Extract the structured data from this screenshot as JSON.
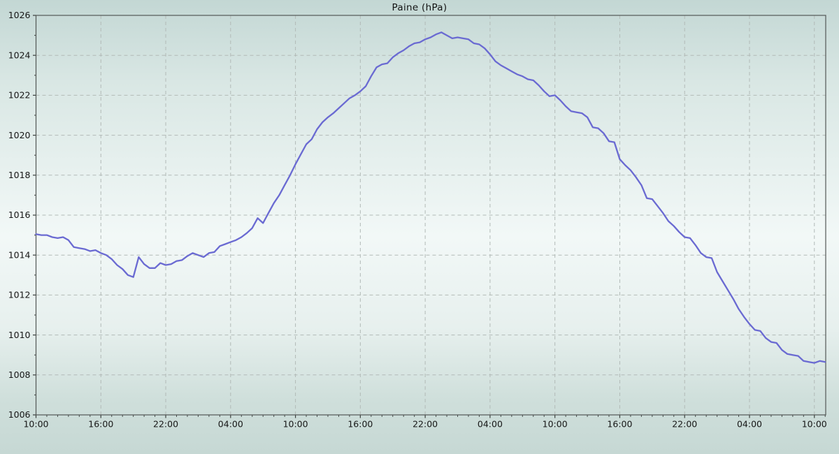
{
  "chart_data": {
    "type": "line",
    "title": "Paine (hPa)",
    "series_name": "Paine pressure",
    "line_color": "#6a6ad2",
    "grid_color": "#b2bab7",
    "axis_color": "#535856",
    "tick_color": "#3a3f3d",
    "label_color": "#161616",
    "x_axis": {
      "unit": "time of day",
      "xmin_hours": 0,
      "xmax_hours": 73.05,
      "major_tick_every_hours": 6,
      "minor_tick_every_hours": 1,
      "major_tick_labels": [
        "10:00",
        "16:00",
        "22:00",
        "04:00",
        "10:00",
        "16:00",
        "22:00",
        "04:00",
        "10:00",
        "16:00",
        "22:00",
        "04:00",
        "10:00"
      ]
    },
    "y_axis": {
      "unit": "hPa",
      "ymin": 1006,
      "ymax": 1026,
      "major_tick_step": 2,
      "minor_tick_step": 1,
      "major_tick_labels": [
        "1006",
        "1008",
        "1010",
        "1012",
        "1014",
        "1016",
        "1018",
        "1020",
        "1022",
        "1024",
        "1026"
      ]
    },
    "grid": {
      "dashed": true,
      "horizontal": true,
      "vertical": true
    },
    "legend": "none",
    "x_start_hour": 0,
    "x_step_hours": 0.5,
    "values": [
      1015.05,
      1015.0,
      1015.0,
      1014.9,
      1014.85,
      1014.9,
      1014.75,
      1014.4,
      1014.35,
      1014.3,
      1014.2,
      1014.25,
      1014.1,
      1014.0,
      1013.8,
      1013.5,
      1013.3,
      1013.0,
      1012.9,
      1013.9,
      1013.55,
      1013.35,
      1013.35,
      1013.6,
      1013.5,
      1013.55,
      1013.7,
      1013.75,
      1013.95,
      1014.1,
      1014.0,
      1013.9,
      1014.1,
      1014.15,
      1014.45,
      1014.55,
      1014.65,
      1014.75,
      1014.9,
      1015.1,
      1015.35,
      1015.85,
      1015.6,
      1016.1,
      1016.6,
      1017.0,
      1017.5,
      1018.0,
      1018.55,
      1019.05,
      1019.55,
      1019.8,
      1020.3,
      1020.65,
      1020.9,
      1021.1,
      1021.35,
      1021.6,
      1021.85,
      1022.0,
      1022.2,
      1022.45,
      1022.95,
      1023.4,
      1023.55,
      1023.6,
      1023.9,
      1024.1,
      1024.25,
      1024.45,
      1024.6,
      1024.65,
      1024.8,
      1024.9,
      1025.05,
      1025.15,
      1025.0,
      1024.85,
      1024.9,
      1024.85,
      1024.8,
      1024.6,
      1024.55,
      1024.35,
      1024.05,
      1023.7,
      1023.5,
      1023.35,
      1023.2,
      1023.05,
      1022.95,
      1022.8,
      1022.75,
      1022.5,
      1022.2,
      1021.95,
      1022.0,
      1021.75,
      1021.45,
      1021.2,
      1021.15,
      1021.1,
      1020.9,
      1020.4,
      1020.35,
      1020.1,
      1019.7,
      1019.65,
      1018.8,
      1018.5,
      1018.25,
      1017.9,
      1017.5,
      1016.85,
      1016.8,
      1016.45,
      1016.1,
      1015.7,
      1015.45,
      1015.15,
      1014.9,
      1014.85,
      1014.5,
      1014.1,
      1013.9,
      1013.85,
      1013.15,
      1012.7,
      1012.25,
      1011.8,
      1011.3,
      1010.9,
      1010.55,
      1010.25,
      1010.2,
      1009.85,
      1009.65,
      1009.6,
      1009.25,
      1009.05,
      1009.0,
      1008.95,
      1008.7,
      1008.65,
      1008.6,
      1008.7,
      1008.65
    ]
  }
}
